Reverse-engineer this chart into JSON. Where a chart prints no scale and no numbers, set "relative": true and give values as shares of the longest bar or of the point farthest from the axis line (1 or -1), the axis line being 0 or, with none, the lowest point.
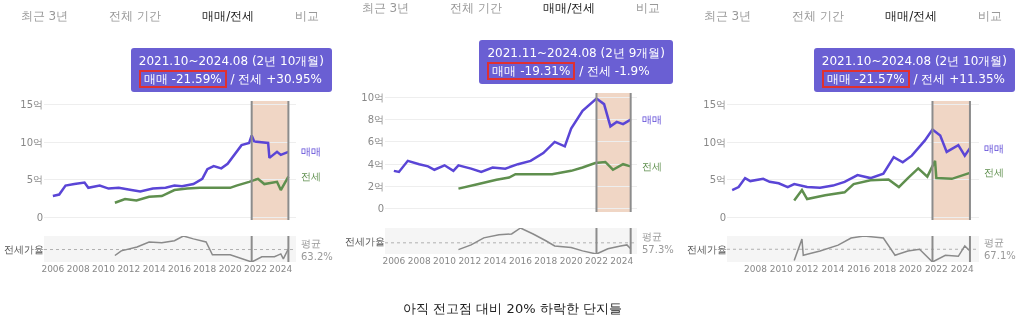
{
  "chart_data": [
    {
      "type": "line",
      "xlim": [
        2005.3,
        2025.2
      ],
      "xticks": [
        2006,
        2008,
        2010,
        2012,
        2014,
        2016,
        2018,
        2020,
        2022,
        2024
      ],
      "ylim": [
        -0.4,
        15.5
      ],
      "yticks": [
        {
          "value": 0,
          "label": "0"
        },
        {
          "value": 5,
          "label": "5억"
        },
        {
          "value": 10,
          "label": "10억"
        },
        {
          "value": 15,
          "label": "15억"
        }
      ],
      "grid": "y",
      "tick_labels": "y",
      "annotations": [
        "최근 3년",
        "전체 기간",
        "매매/전세",
        "비교",
        "2021.10~2024.08 (2년 10개월)",
        "매매 -21.59%",
        "/ 전세 +30.95%"
      ],
      "bands": [
        {
          "axis": "x",
          "from": 2021.7,
          "to": 2024.6,
          "color": "#e9c4ad"
        }
      ],
      "ref_lines": [
        {
          "axis": "x",
          "value": 2021.7,
          "color": "#8c8c8c"
        },
        {
          "axis": "x",
          "value": 2024.6,
          "color": "#8c8c8c"
        }
      ],
      "series": [
        {
          "name": "매매",
          "color": "#5a45d6",
          "x": [
            2006.0,
            2006.5,
            2007.0,
            2007.7,
            2008.5,
            2008.8,
            2009.7,
            2010.4,
            2011.2,
            2012.2,
            2012.9,
            2013.9,
            2014.9,
            2015.6,
            2016.2,
            2017.1,
            2017.8,
            2018.2,
            2018.7,
            2019.3,
            2019.8,
            2020.9,
            2021.5,
            2021.7,
            2021.9,
            2023.0,
            2023.1,
            2023.7,
            2024.0,
            2024.6
          ],
          "values": [
            2.8,
            3.0,
            4.2,
            4.4,
            4.6,
            3.9,
            4.2,
            3.8,
            3.9,
            3.6,
            3.4,
            3.8,
            3.9,
            4.2,
            4.1,
            4.4,
            5.1,
            6.4,
            6.8,
            6.5,
            7.1,
            9.6,
            9.9,
            10.9,
            10.1,
            9.9,
            7.9,
            8.7,
            8.3,
            8.7
          ]
        },
        {
          "name": "전세",
          "color": "#5f8f4e",
          "x": [
            2010.9,
            2011.7,
            2012.6,
            2013.6,
            2014.6,
            2015.6,
            2016.6,
            2017.6,
            2018.6,
            2020.0,
            2020.5,
            2021.5,
            2022.2,
            2022.7,
            2023.7,
            2024.0,
            2024.6
          ],
          "values": [
            1.9,
            2.4,
            2.2,
            2.7,
            2.8,
            3.6,
            3.8,
            3.9,
            3.9,
            3.9,
            4.2,
            4.7,
            5.1,
            4.4,
            4.7,
            3.6,
            5.4
          ]
        }
      ]
    },
    {
      "type": "line",
      "relative": true,
      "xlim": [
        2005.3,
        2025.2
      ],
      "xticks": [
        2006,
        2008,
        2010,
        2012,
        2014,
        2016,
        2018,
        2020,
        2022,
        2024
      ],
      "tick_labels": "x",
      "ylabel": "전세가율",
      "ref_lines": [
        {
          "axis": "y",
          "value": 0.48,
          "label": "평균 63.2%",
          "color": "#b0b0b0",
          "line_style": "dotted"
        },
        {
          "axis": "x",
          "value": 2021.7,
          "color": "#8c8c8c"
        },
        {
          "axis": "x",
          "value": 2024.6,
          "color": "#8c8c8c"
        }
      ],
      "series": [
        {
          "color": "#8a8a8a",
          "x": [
            2010.9,
            2011.4,
            2012.65,
            2013.6,
            2014.6,
            2015.6,
            2016.3,
            2017.1,
            2018.1,
            2018.6,
            2020.0,
            2021.7,
            2022.5,
            2023.5,
            2024.0,
            2024.2,
            2024.6
          ],
          "values": [
            0.25,
            0.43,
            0.58,
            0.77,
            0.74,
            0.82,
            1,
            0.89,
            0.77,
            0.28,
            0.28,
            0,
            0.2,
            0.2,
            0.31,
            0.12,
            0.51
          ]
        }
      ]
    },
    {
      "type": "line",
      "xlim": [
        2005.3,
        2025.2
      ],
      "xticks": [
        2006,
        2008,
        2010,
        2012,
        2014,
        2016,
        2018,
        2020,
        2022,
        2024
      ],
      "ylim": [
        -0.3,
        10.4
      ],
      "yticks": [
        {
          "value": 0,
          "label": "0"
        },
        {
          "value": 2,
          "label": "2억"
        },
        {
          "value": 4,
          "label": "4억"
        },
        {
          "value": 6,
          "label": "6억"
        },
        {
          "value": 8,
          "label": "8억"
        },
        {
          "value": 10,
          "label": "10억"
        }
      ],
      "grid": "y",
      "tick_labels": "y",
      "annotations": [
        "최근 3년",
        "전체 기간",
        "매매/전세",
        "비교",
        "2021.11~2024.08 (2년 9개월)",
        "매매 -19.31%",
        "/ 전세 -1.9%",
        "아직 전고점 대비 20% 하락한 단지들"
      ],
      "bands": [
        {
          "axis": "x",
          "from": 2022.0,
          "to": 2024.7,
          "color": "#e9c4ad"
        }
      ],
      "ref_lines": [
        {
          "axis": "x",
          "value": 2022.0,
          "color": "#8c8c8c"
        },
        {
          "axis": "x",
          "value": 2024.7,
          "color": "#8c8c8c"
        }
      ],
      "series": [
        {
          "name": "매매",
          "color": "#5a45d6",
          "x": [
            2006.0,
            2006.4,
            2007.1,
            2008.0,
            2008.7,
            2009.2,
            2010.0,
            2010.7,
            2011.1,
            2012.1,
            2012.9,
            2013.8,
            2014.8,
            2015.8,
            2016.8,
            2017.8,
            2018.7,
            2019.5,
            2020.0,
            2020.9,
            2022.0,
            2022.6,
            2023.1,
            2023.6,
            2024.1,
            2024.7
          ],
          "values": [
            3.4,
            3.3,
            4.3,
            4.0,
            3.8,
            3.5,
            3.9,
            3.4,
            3.9,
            3.6,
            3.3,
            3.7,
            3.6,
            4.0,
            4.3,
            5.0,
            6.0,
            5.6,
            7.2,
            8.8,
            9.9,
            9.4,
            7.4,
            7.8,
            7.6,
            8.0
          ]
        },
        {
          "name": "전세",
          "color": "#5f8f4e",
          "x": [
            2011.1,
            2012.6,
            2014.1,
            2015.1,
            2015.6,
            2017.0,
            2018.5,
            2020.0,
            2020.9,
            2021.9,
            2022.7,
            2023.3,
            2024.1,
            2024.7
          ],
          "values": [
            1.8,
            2.2,
            2.6,
            2.8,
            3.1,
            3.1,
            3.1,
            3.4,
            3.7,
            4.1,
            4.2,
            3.5,
            4.0,
            3.8
          ]
        }
      ]
    },
    {
      "type": "line",
      "relative": true,
      "xlim": [
        2005.3,
        2025.2
      ],
      "xticks": [
        2006,
        2008,
        2010,
        2012,
        2014,
        2016,
        2018,
        2020,
        2022,
        2024
      ],
      "tick_labels": "x",
      "ylabel": "전세가율",
      "ref_lines": [
        {
          "axis": "y",
          "value": 0.43,
          "label": "평균 57.3%",
          "color": "#b0b0b0",
          "line_style": "dotted"
        },
        {
          "axis": "x",
          "value": 2022.0,
          "color": "#8c8c8c"
        },
        {
          "axis": "x",
          "value": 2024.7,
          "color": "#8c8c8c"
        }
      ],
      "series": [
        {
          "color": "#8a8a8a",
          "x": [
            2011.1,
            2012.1,
            2013.1,
            2014.3,
            2015.3,
            2016.0,
            2017.0,
            2018.0,
            2018.7,
            2020.0,
            2020.9,
            2022.0,
            2022.9,
            2023.9,
            2024.4,
            2024.7
          ],
          "values": [
            0.17,
            0.35,
            0.62,
            0.74,
            0.77,
            1,
            0.77,
            0.51,
            0.31,
            0.25,
            0.12,
            0,
            0.2,
            0.31,
            0.35,
            0.2
          ]
        }
      ]
    },
    {
      "type": "line",
      "xlim": [
        2005.8,
        2025.3
      ],
      "xticks": [
        2008,
        2010,
        2012,
        2014,
        2016,
        2018,
        2020,
        2022,
        2024
      ],
      "ylim": [
        -0.4,
        15.5
      ],
      "yticks": [
        {
          "value": 0,
          "label": "0"
        },
        {
          "value": 5,
          "label": "5억"
        },
        {
          "value": 10,
          "label": "10억"
        },
        {
          "value": 15,
          "label": "15억"
        }
      ],
      "grid": "y",
      "tick_labels": "y",
      "annotations": [
        "최근 3년",
        "전체 기간",
        "매매/전세",
        "비교",
        "2021.10~2024.08 (2년 10개월)",
        "매매 -21.57%",
        "/ 전세 +11.35%"
      ],
      "bands": [
        {
          "axis": "x",
          "from": 2021.7,
          "to": 2024.6,
          "color": "#e9c4ad"
        }
      ],
      "ref_lines": [
        {
          "axis": "x",
          "value": 2021.7,
          "color": "#8c8c8c"
        },
        {
          "axis": "x",
          "value": 2024.6,
          "color": "#8c8c8c"
        }
      ],
      "series": [
        {
          "name": "매매",
          "color": "#5a45d6",
          "x": [
            2006.2,
            2006.7,
            2007.2,
            2007.6,
            2008.6,
            2009.1,
            2009.8,
            2010.5,
            2011.0,
            2012.0,
            2013.0,
            2014.0,
            2014.9,
            2015.9,
            2016.9,
            2017.9,
            2018.7,
            2019.4,
            2020.1,
            2021.1,
            2021.7,
            2022.3,
            2022.8,
            2023.7,
            2024.2,
            2024.6
          ],
          "values": [
            3.6,
            4.0,
            5.2,
            4.8,
            5.1,
            4.7,
            4.5,
            4.0,
            4.4,
            4.0,
            3.9,
            4.2,
            4.7,
            5.6,
            5.2,
            5.8,
            8.0,
            7.3,
            8.2,
            10.2,
            11.7,
            10.9,
            8.7,
            9.6,
            8.2,
            9.2
          ]
        },
        {
          "name": "전세",
          "color": "#5f8f4e",
          "x": [
            2011.0,
            2011.6,
            2012.0,
            2013.4,
            2014.9,
            2015.6,
            2016.9,
            2018.3,
            2019.1,
            2019.8,
            2020.6,
            2021.3,
            2021.9,
            2022.0,
            2023.2,
            2024.6
          ],
          "values": [
            2.2,
            3.6,
            2.4,
            2.9,
            3.3,
            4.4,
            4.9,
            5.0,
            4.0,
            5.2,
            6.5,
            5.4,
            7.5,
            5.2,
            5.1,
            5.9
          ]
        }
      ]
    },
    {
      "type": "line",
      "relative": true,
      "xlim": [
        2005.8,
        2025.3
      ],
      "xticks": [
        2008,
        2010,
        2012,
        2014,
        2016,
        2018,
        2020,
        2022,
        2024
      ],
      "tick_labels": "x",
      "ylabel": "전세가율",
      "ref_lines": [
        {
          "axis": "y",
          "value": 0.49,
          "label": "평균 67.1%",
          "color": "#b0b0b0",
          "line_style": "dotted"
        },
        {
          "axis": "x",
          "value": 2021.7,
          "color": "#8c8c8c"
        },
        {
          "axis": "x",
          "value": 2024.6,
          "color": "#8c8c8c"
        }
      ],
      "series": [
        {
          "color": "#8a8a8a",
          "x": [
            2011.0,
            2011.6,
            2011.7,
            2013.0,
            2014.4,
            2015.4,
            2016.4,
            2017.9,
            2018.8,
            2019.8,
            2020.7,
            2021.7,
            2022.7,
            2023.7,
            2024.2,
            2024.6
          ],
          "values": [
            0.06,
            0.88,
            0.26,
            0.42,
            0.65,
            0.92,
            1,
            0.92,
            0.26,
            0.42,
            0.49,
            0,
            0.26,
            0.22,
            0.62,
            0.42
          ]
        }
      ]
    }
  ]
}
